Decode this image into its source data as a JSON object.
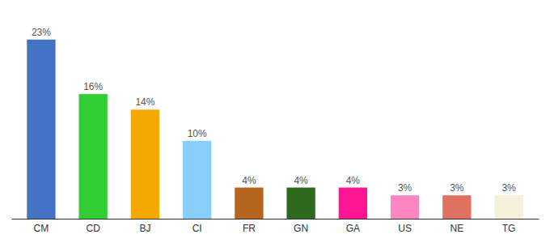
{
  "chart_data": {
    "type": "bar",
    "categories": [
      "CM",
      "CD",
      "BJ",
      "CI",
      "FR",
      "GN",
      "GA",
      "US",
      "NE",
      "TG"
    ],
    "values": [
      23,
      16,
      14,
      10,
      4,
      4,
      4,
      3,
      3,
      3
    ],
    "value_labels": [
      "23%",
      "16%",
      "14%",
      "10%",
      "4%",
      "4%",
      "4%",
      "3%",
      "3%",
      "3%"
    ],
    "colors": [
      "#4472c4",
      "#33cc33",
      "#f5a800",
      "#87cefa",
      "#b5651d",
      "#2d6a1e",
      "#ff1493",
      "#ff85c2",
      "#e07060",
      "#f5f0dc"
    ],
    "ylim": [
      0,
      26
    ],
    "data_labels": true,
    "tick_labels": "x",
    "grid": false
  }
}
